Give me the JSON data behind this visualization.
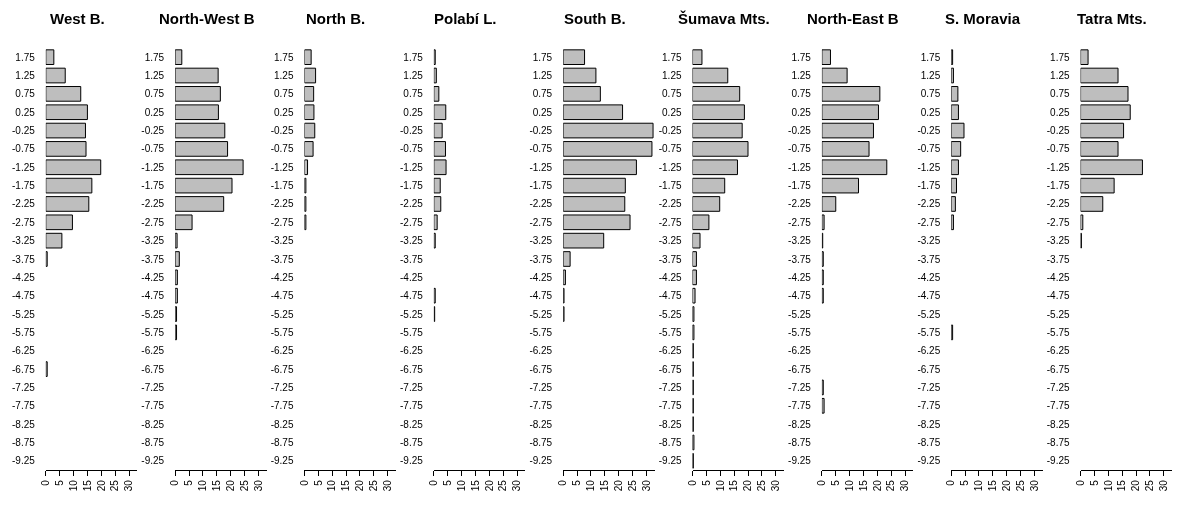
{
  "chart_data": [
    {
      "type": "bar",
      "orientation": "horizontal",
      "title": "West B.",
      "color": "#bebebe",
      "xlim": [
        0,
        33
      ],
      "xticks": [
        0,
        5,
        10,
        15,
        20,
        25,
        30
      ],
      "grid": false,
      "categories": [
        "1.75",
        "1.25",
        "0.75",
        "0.25",
        "-0.25",
        "-0.75",
        "-1.25",
        "-1.75",
        "-2.25",
        "-2.75",
        "-3.25",
        "-3.75",
        "-4.25",
        "-4.75",
        "-5.25",
        "-5.75",
        "-6.25",
        "-6.75",
        "-7.25",
        "-7.75",
        "-8.25",
        "-8.75",
        "-9.25"
      ],
      "values": [
        2.9,
        7,
        12.6,
        15,
        14.3,
        14.5,
        19.8,
        16.6,
        15.5,
        9.6,
        5.8,
        0.5,
        0,
        0,
        0,
        0,
        0,
        0.5,
        0,
        0,
        0,
        0,
        0
      ]
    },
    {
      "type": "bar",
      "orientation": "horizontal",
      "title": "North-West B",
      "color": "#bebebe",
      "xlim": [
        0,
        33
      ],
      "xticks": [
        0,
        5,
        10,
        15,
        20,
        25,
        30
      ],
      "grid": false,
      "categories": [
        "1.75",
        "1.25",
        "0.75",
        "0.25",
        "-0.25",
        "-0.75",
        "-1.25",
        "-1.75",
        "-2.25",
        "-2.75",
        "-3.25",
        "-3.75",
        "-4.25",
        "-4.75",
        "-5.25",
        "-5.75",
        "-6.25",
        "-6.75",
        "-7.25",
        "-7.75",
        "-8.25",
        "-8.75",
        "-9.25"
      ],
      "values": [
        2.4,
        15.5,
        16.3,
        15.6,
        17.9,
        18.9,
        24.5,
        20.5,
        17.5,
        6.1,
        0.7,
        1.5,
        0.8,
        0.8,
        0.5,
        0.5,
        0,
        0,
        0,
        0,
        0,
        0,
        0
      ]
    },
    {
      "type": "bar",
      "orientation": "horizontal",
      "title": "North B.",
      "color": "#bebebe",
      "xlim": [
        0,
        33
      ],
      "xticks": [
        0,
        5,
        10,
        15,
        20,
        25,
        30
      ],
      "grid": false,
      "categories": [
        "1.75",
        "1.25",
        "0.75",
        "0.25",
        "-0.25",
        "-0.75",
        "-1.25",
        "-1.75",
        "-2.25",
        "-2.75",
        "-3.25",
        "-3.75",
        "-4.25",
        "-4.75",
        "-5.25",
        "-5.75",
        "-6.25",
        "-6.75",
        "-7.25",
        "-7.75",
        "-8.25",
        "-8.75",
        "-9.25"
      ],
      "values": [
        2.4,
        4,
        3.3,
        3.4,
        3.7,
        3.1,
        1.1,
        0.5,
        0.5,
        0.5,
        0,
        0,
        0,
        0,
        0,
        0,
        0,
        0,
        0,
        0,
        0,
        0,
        0
      ]
    },
    {
      "type": "bar",
      "orientation": "horizontal",
      "title": "Polabí L.",
      "color": "#bebebe",
      "xlim": [
        0,
        33
      ],
      "xticks": [
        0,
        5,
        10,
        15,
        20,
        25,
        30
      ],
      "grid": false,
      "categories": [
        "1.75",
        "1.25",
        "0.75",
        "0.25",
        "-0.25",
        "-0.75",
        "-1.25",
        "-1.75",
        "-2.25",
        "-2.75",
        "-3.25",
        "-3.75",
        "-4.25",
        "-4.75",
        "-5.25",
        "-5.75",
        "-6.25",
        "-6.75",
        "-7.25",
        "-7.75",
        "-8.25",
        "-8.75",
        "-9.25"
      ],
      "values": [
        0.5,
        0.9,
        1.8,
        4.3,
        3,
        4.2,
        4.4,
        2.3,
        2.5,
        1.2,
        0.5,
        0,
        0,
        0.5,
        0.3,
        0,
        0,
        0,
        0,
        0,
        0,
        0,
        0
      ]
    },
    {
      "type": "bar",
      "orientation": "horizontal",
      "title": "South B.",
      "color": "#bebebe",
      "xlim": [
        0,
        33
      ],
      "xticks": [
        0,
        5,
        10,
        15,
        20,
        25,
        30
      ],
      "grid": false,
      "categories": [
        "1.75",
        "1.25",
        "0.75",
        "0.25",
        "-0.25",
        "-0.75",
        "-1.25",
        "-1.75",
        "-2.25",
        "-2.75",
        "-3.25",
        "-3.75",
        "-4.25",
        "-4.75",
        "-5.25",
        "-5.75",
        "-6.25",
        "-6.75",
        "-7.25",
        "-7.75",
        "-8.25",
        "-8.75",
        "-9.25"
      ],
      "values": [
        7.7,
        11.8,
        13.4,
        21.4,
        32.4,
        32,
        26.4,
        22.4,
        22.2,
        24.1,
        14.6,
        2.5,
        0.8,
        0.3,
        0.3,
        0,
        0,
        0,
        0,
        0,
        0,
        0,
        0
      ]
    },
    {
      "type": "bar",
      "orientation": "horizontal",
      "title": "Šumava Mts.",
      "color": "#bebebe",
      "xlim": [
        0,
        33
      ],
      "xticks": [
        0,
        5,
        10,
        15,
        20,
        25,
        30
      ],
      "grid": false,
      "categories": [
        "1.75",
        "1.25",
        "0.75",
        "0.25",
        "-0.25",
        "-0.75",
        "-1.25",
        "-1.75",
        "-2.25",
        "-2.75",
        "-3.25",
        "-3.75",
        "-4.25",
        "-4.75",
        "-5.25",
        "-5.75",
        "-6.25",
        "-6.75",
        "-7.25",
        "-7.75",
        "-8.25",
        "-8.75",
        "-9.25"
      ],
      "values": [
        3.4,
        12.7,
        17,
        18.7,
        17.9,
        20,
        16.2,
        11.6,
        9.8,
        5.9,
        2.7,
        1.4,
        1.4,
        0.9,
        0.5,
        0.5,
        0.3,
        0.3,
        0.3,
        0.3,
        0.3,
        0.5,
        0.3
      ]
    },
    {
      "type": "bar",
      "orientation": "horizontal",
      "title": "North-East B",
      "color": "#bebebe",
      "xlim": [
        0,
        33
      ],
      "xticks": [
        0,
        5,
        10,
        15,
        20,
        25,
        30
      ],
      "grid": false,
      "categories": [
        "1.75",
        "1.25",
        "0.75",
        "0.25",
        "-0.25",
        "-0.75",
        "-1.25",
        "-1.75",
        "-2.25",
        "-2.75",
        "-3.25",
        "-3.75",
        "-4.25",
        "-4.75",
        "-5.25",
        "-5.75",
        "-6.25",
        "-6.75",
        "-7.25",
        "-7.75",
        "-8.25",
        "-8.75",
        "-9.25"
      ],
      "values": [
        3.1,
        9.1,
        20.9,
        20.4,
        18.6,
        17,
        23.4,
        13.2,
        5,
        0.8,
        0.3,
        0.5,
        0.5,
        0.5,
        0,
        0,
        0,
        0,
        0.5,
        0.8,
        0,
        0,
        0
      ]
    },
    {
      "type": "bar",
      "orientation": "horizontal",
      "title": "S. Moravia",
      "color": "#bebebe",
      "xlim": [
        0,
        33
      ],
      "xticks": [
        0,
        5,
        10,
        15,
        20,
        25,
        30
      ],
      "grid": false,
      "categories": [
        "1.75",
        "1.25",
        "0.75",
        "0.25",
        "-0.25",
        "-0.75",
        "-1.25",
        "-1.75",
        "-2.25",
        "-2.75",
        "-3.25",
        "-3.75",
        "-4.25",
        "-4.75",
        "-5.25",
        "-5.75",
        "-6.25",
        "-6.75",
        "-7.25",
        "-7.75",
        "-8.25",
        "-8.75",
        "-9.25"
      ],
      "values": [
        0.5,
        0.8,
        2.4,
        2.6,
        4.6,
        3.4,
        2.6,
        1.9,
        1.5,
        0.8,
        0,
        0,
        0,
        0,
        0,
        0.5,
        0,
        0,
        0,
        0,
        0,
        0,
        0
      ]
    },
    {
      "type": "bar",
      "orientation": "horizontal",
      "title": "Tatra Mts.",
      "color": "#bebebe",
      "xlim": [
        0,
        33
      ],
      "xticks": [
        0,
        5,
        10,
        15,
        20,
        25,
        30
      ],
      "grid": false,
      "categories": [
        "1.75",
        "1.25",
        "0.75",
        "0.25",
        "-0.25",
        "-0.75",
        "-1.25",
        "-1.75",
        "-2.25",
        "-2.75",
        "-3.25",
        "-3.75",
        "-4.25",
        "-4.75",
        "-5.25",
        "-5.75",
        "-6.25",
        "-6.75",
        "-7.25",
        "-7.75",
        "-8.25",
        "-8.75",
        "-9.25"
      ],
      "values": [
        2.7,
        13.5,
        17.1,
        17.9,
        15.5,
        13.5,
        22.3,
        12.1,
        8,
        0.8,
        0.3,
        0,
        0,
        0,
        0,
        0,
        0,
        0,
        0,
        0,
        0,
        0,
        0
      ]
    }
  ]
}
